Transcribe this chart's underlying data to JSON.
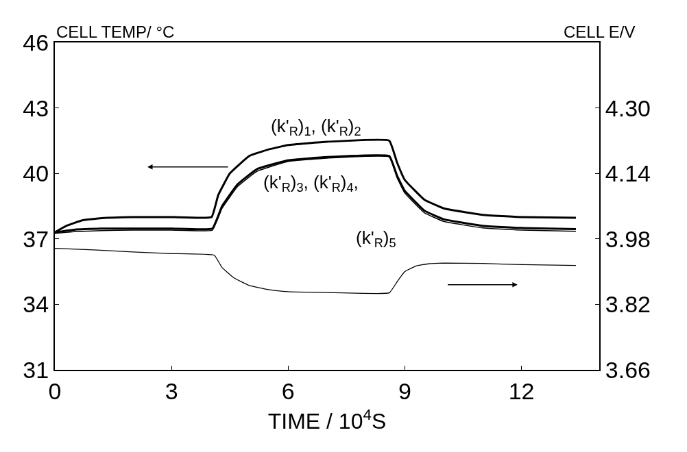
{
  "chart_data": {
    "type": "line",
    "xlabel": "TIME / 10$^{4}$S",
    "ylabel": "CELL TEMP/ °C",
    "y2label": "CELL E/V",
    "xlim": [
      0,
      14
    ],
    "xticks": [
      0,
      3,
      6,
      9,
      12
    ],
    "ylim": [
      31,
      46
    ],
    "yticks": [
      31,
      34,
      37,
      40,
      43,
      46
    ],
    "y2lim": [
      3.66,
      4.46
    ],
    "y2ticks": [
      3.66,
      3.82,
      3.98,
      4.14,
      {
        "value": 4.3,
        "label": "4.30"
      }
    ],
    "marker": "none",
    "line_style": "solid",
    "series": [
      {
        "color": "#000000",
        "x": [
          0,
          0.3,
          0.7,
          1.2,
          2,
          3,
          4.03,
          4.2,
          4.5,
          5,
          5.5,
          6,
          7,
          8.6,
          8.8,
          9.0,
          9.5,
          10,
          11,
          12,
          13.4
        ],
        "values": [
          37.3,
          37.6,
          37.85,
          37.95,
          38.0,
          38.0,
          38.0,
          39.0,
          40.0,
          40.8,
          41.1,
          41.3,
          41.45,
          41.5,
          40.5,
          39.7,
          38.8,
          38.4,
          38.1,
          38.0,
          37.97
        ]
      },
      {
        "color": "#000000",
        "x": [
          0,
          0.5,
          1.2,
          2,
          3,
          4.05,
          4.3,
          4.7,
          5.2,
          6,
          7,
          8.6,
          8.8,
          9.0,
          9.5,
          10,
          11,
          12,
          13.4
        ],
        "values": [
          37.3,
          37.42,
          37.47,
          37.47,
          37.47,
          37.47,
          38.5,
          39.5,
          40.2,
          40.6,
          40.75,
          40.8,
          39.9,
          39.2,
          38.3,
          37.9,
          37.6,
          37.5,
          37.45
        ]
      },
      {
        "color": "#000000",
        "x": [
          0,
          0.5,
          1.2,
          2,
          3,
          4.05,
          4.3,
          4.7,
          5.2,
          6,
          7,
          8.6,
          8.8,
          9.0,
          9.5,
          10,
          11,
          12,
          13.4
        ],
        "values": [
          37.25,
          37.33,
          37.38,
          37.4,
          37.4,
          37.4,
          38.4,
          39.4,
          40.1,
          40.55,
          40.7,
          40.75,
          39.8,
          39.1,
          38.2,
          37.8,
          37.5,
          37.4,
          37.35
        ]
      },
      {
        "color": "#000000",
        "axis": "y2",
        "x": [
          0,
          1,
          2,
          3,
          4.1,
          4.3,
          4.6,
          5,
          5.5,
          6,
          7,
          8.6,
          8.8,
          9.0,
          9.3,
          9.6,
          10,
          11,
          12,
          13.4
        ],
        "values": [
          3.957,
          3.953,
          3.948,
          3.944,
          3.94,
          3.91,
          3.885,
          3.866,
          3.856,
          3.851,
          3.849,
          3.848,
          3.875,
          3.9,
          3.914,
          3.919,
          3.921,
          3.92,
          3.917,
          3.915
        ]
      }
    ],
    "annotations": [
      "(k'$_{R}$)$_{1}$, (k'$_{R}$)$_{2}$",
      "(k'$_{R}$)$_{3}$, (k'$_{R}$)$_{4}$,",
      "(k'$_{R}$)$_{5}$"
    ]
  }
}
